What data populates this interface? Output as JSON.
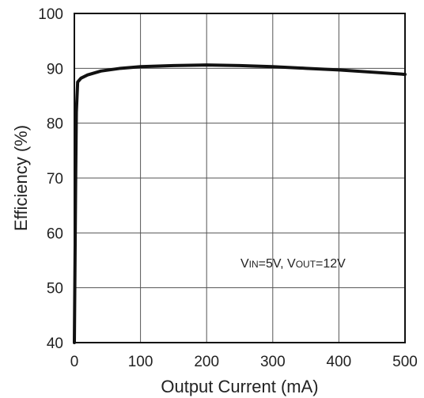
{
  "chart_data": {
    "type": "line",
    "xlabel": "Output Current (mA)",
    "ylabel": "Efficiency (%)",
    "xlim": [
      0,
      500
    ],
    "ylim": [
      40,
      100
    ],
    "x_ticks": [
      0,
      100,
      200,
      300,
      400,
      500
    ],
    "y_ticks": [
      40,
      50,
      60,
      70,
      80,
      90,
      100
    ],
    "grid": true,
    "annotation": {
      "v_prefix_1": "V",
      "v_sub_1": "IN",
      "v_rest_1": "=5V, ",
      "v_prefix_2": "V",
      "v_sub_2": "OUT",
      "v_rest_2": "=12V"
    },
    "series": [
      {
        "color": "#111111",
        "x": [
          0,
          1,
          2,
          3,
          5,
          10,
          20,
          40,
          70,
          100,
          150,
          200,
          250,
          300,
          350,
          400,
          450,
          500
        ],
        "y": [
          40,
          55,
          70,
          82,
          87.5,
          88.2,
          88.8,
          89.5,
          90.0,
          90.3,
          90.5,
          90.6,
          90.5,
          90.3,
          90.0,
          89.7,
          89.3,
          88.9
        ]
      }
    ]
  }
}
